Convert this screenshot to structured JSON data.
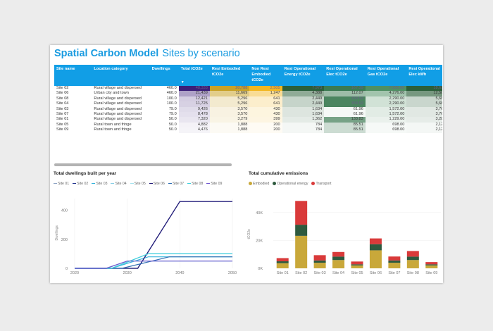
{
  "header": {
    "title": "Spatial Carbon Model",
    "subtitle": "Sites by scenario"
  },
  "table": {
    "columns": [
      "Site name",
      "Location category",
      "Dwellings",
      "Total tCO2e",
      "Resi Embodied tCO2e",
      "Non Resi Embodied tCO2e",
      "Resi Operational Energy tCO2e",
      "Resi Operational Elec tCO2e",
      "Resi Operational Gas tCO2e",
      "Resi Operational Elec kWh"
    ],
    "scale_colors": [
      null,
      null,
      null,
      "#3c1f78",
      "#c9a227",
      "#f2b722",
      "#2c5f3a",
      "#3b7a52",
      "#4f8f63",
      "#2c5f3a"
    ],
    "rows": [
      [
        "Site 02",
        "Rural village and dispersed",
        "460.0",
        "48,333",
        "20,788",
        "2,505",
        "7,973",
        "167.39",
        "7,805.00",
        "18,694,"
      ],
      [
        "Site 06",
        "Urban city and town",
        "460.0",
        "21,439",
        "11,669",
        "1,247",
        "4,388",
        "112.07",
        "4,276.00",
        "12,508,"
      ],
      [
        "Site 08",
        "Rural village and dispersed",
        "100.0",
        "12,421",
        "5,296",
        "641",
        "2,449",
        "158.52",
        "2,290.00",
        "5,680,"
      ],
      [
        "Site 04",
        "Rural village and dispersed",
        "100.0",
        "11,725",
        "5,296",
        "641",
        "2,449",
        "158.52",
        "2,290.00",
        "5,680,"
      ],
      [
        "Site 03",
        "Rural village and dispersed",
        "79.0",
        "9,426",
        "3,570",
        "430",
        "1,634",
        "61.96",
        "1,572.00",
        "3,761,"
      ],
      [
        "Site 07",
        "Rural village and dispersed",
        "79.0",
        "8,478",
        "3,570",
        "430",
        "1,634",
        "61.96",
        "1,572.00",
        "3,761,"
      ],
      [
        "Site 01",
        "Rural village and dispersed",
        "50.0",
        "7,320",
        "3,279",
        "399",
        "1,362",
        "133.83",
        "1,229.00",
        "3,288,"
      ],
      [
        "Site 05",
        "Rural town and fringe",
        "50.0",
        "4,882",
        "1,888",
        "200",
        "784",
        "85.51",
        "698.00",
        "2,122,"
      ],
      [
        "Site 09",
        "Rural town and fringe",
        "50.0",
        "4,476",
        "1,888",
        "200",
        "784",
        "85.51",
        "698.00",
        "2,122,"
      ]
    ]
  },
  "chart_data": [
    {
      "type": "line",
      "title": "Total dwellings built per year",
      "xlabel": "",
      "ylabel": "Dwellings",
      "xlim": [
        2020,
        2050
      ],
      "ylim": [
        0,
        480
      ],
      "xticks": [
        "2020",
        "2030",
        "2040",
        "2050"
      ],
      "yticks": [
        "0",
        "200",
        "400"
      ],
      "legend_position": "top-left",
      "series": [
        {
          "name": "Site 01",
          "color": "#8ea4c4",
          "points": [
            [
              2020,
              0
            ],
            [
              2026,
              0
            ],
            [
              2030,
              50
            ],
            [
              2050,
              50
            ]
          ]
        },
        {
          "name": "Site 02",
          "color": "#22338f",
          "points": [
            [
              2020,
              0
            ],
            [
              2032,
              0
            ],
            [
              2040,
              460
            ],
            [
              2050,
              460
            ]
          ]
        },
        {
          "name": "Site 03",
          "color": "#34b3dc",
          "points": [
            [
              2020,
              0
            ],
            [
              2027,
              0
            ],
            [
              2034,
              79
            ],
            [
              2050,
              79
            ]
          ]
        },
        {
          "name": "Site 04",
          "color": "#88cfe6",
          "points": [
            [
              2020,
              0
            ],
            [
              2027,
              0
            ],
            [
              2034,
              100
            ],
            [
              2050,
              100
            ]
          ]
        },
        {
          "name": "Site 05",
          "color": "#a6e3ef",
          "points": [
            [
              2020,
              0
            ],
            [
              2026,
              0
            ],
            [
              2030,
              50
            ],
            [
              2050,
              50
            ]
          ]
        },
        {
          "name": "Site 06",
          "color": "#241c78",
          "points": [
            [
              2020,
              0
            ],
            [
              2032,
              0
            ],
            [
              2040,
              460
            ],
            [
              2050,
              460
            ]
          ]
        },
        {
          "name": "Site 07",
          "color": "#2f6fb3",
          "points": [
            [
              2020,
              0
            ],
            [
              2029,
              0
            ],
            [
              2038,
              79
            ],
            [
              2050,
              79
            ]
          ]
        },
        {
          "name": "Site 08",
          "color": "#3fd0dc",
          "points": [
            [
              2020,
              0
            ],
            [
              2027,
              0
            ],
            [
              2034,
              100
            ],
            [
              2050,
              100
            ]
          ]
        },
        {
          "name": "Site 09",
          "color": "#7058d0",
          "points": [
            [
              2020,
              0
            ],
            [
              2026,
              0
            ],
            [
              2030,
              50
            ],
            [
              2050,
              50
            ]
          ]
        }
      ]
    },
    {
      "type": "bar",
      "stacked": true,
      "title": "Total cumulative emissions",
      "xlabel": "",
      "ylabel": "tCO2e",
      "ylim": [
        0,
        50000
      ],
      "yticks": [
        "0K",
        "20K",
        "40K"
      ],
      "legend_position": "top-left",
      "categories": [
        "Site 01",
        "Site 02",
        "Site 03",
        "Site 04",
        "Site 05",
        "Site 06",
        "Site 07",
        "Site 08",
        "Site 09"
      ],
      "series": [
        {
          "name": "Embodied",
          "color": "#c9a83a",
          "values": [
            3678,
            23293,
            4000,
            5937,
            2088,
            12916,
            4000,
            5937,
            2088
          ]
        },
        {
          "name": "Operational energy",
          "color": "#2e5a3e",
          "values": [
            1362,
            7973,
            1634,
            2449,
            784,
            4388,
            1634,
            2449,
            784
          ]
        },
        {
          "name": "Transport",
          "color": "#d93a3a",
          "values": [
            2280,
            17067,
            3792,
            3339,
            2010,
            4135,
            2844,
            4035,
            1604
          ]
        }
      ]
    }
  ]
}
